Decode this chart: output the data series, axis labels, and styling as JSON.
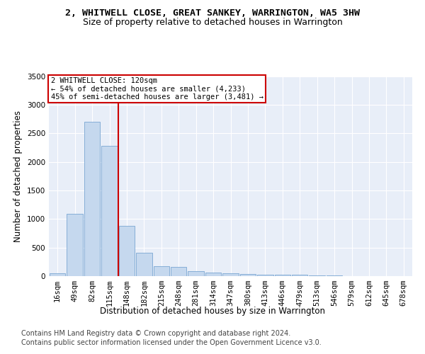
{
  "title1": "2, WHITWELL CLOSE, GREAT SANKEY, WARRINGTON, WA5 3HW",
  "title2": "Size of property relative to detached houses in Warrington",
  "xlabel": "Distribution of detached houses by size in Warrington",
  "ylabel": "Number of detached properties",
  "footer1": "Contains HM Land Registry data © Crown copyright and database right 2024.",
  "footer2": "Contains public sector information licensed under the Open Government Licence v3.0.",
  "annotation_title": "2 WHITWELL CLOSE: 120sqm",
  "annotation_line1": "← 54% of detached houses are smaller (4,233)",
  "annotation_line2": "45% of semi-detached houses are larger (3,481) →",
  "bar_categories": [
    "16sqm",
    "49sqm",
    "82sqm",
    "115sqm",
    "148sqm",
    "182sqm",
    "215sqm",
    "248sqm",
    "281sqm",
    "314sqm",
    "347sqm",
    "380sqm",
    "413sqm",
    "446sqm",
    "479sqm",
    "513sqm",
    "546sqm",
    "579sqm",
    "612sqm",
    "645sqm",
    "678sqm"
  ],
  "bar_values": [
    50,
    1090,
    2700,
    2280,
    880,
    410,
    170,
    160,
    90,
    60,
    45,
    40,
    30,
    25,
    20,
    18,
    10,
    5,
    5,
    4,
    4
  ],
  "bar_color": "#c5d8ee",
  "bar_edge_color": "#6699cc",
  "vline_color": "#cc0000",
  "vline_x": 3.5,
  "background_color": "#e8eef8",
  "grid_color": "#ffffff",
  "ylim": [
    0,
    3500
  ],
  "yticks": [
    0,
    500,
    1000,
    1500,
    2000,
    2500,
    3000,
    3500
  ],
  "annotation_box_color": "#cc0000",
  "title1_fontsize": 9.5,
  "title2_fontsize": 9,
  "xlabel_fontsize": 8.5,
  "ylabel_fontsize": 8.5,
  "tick_fontsize": 7.5,
  "footer_fontsize": 7
}
